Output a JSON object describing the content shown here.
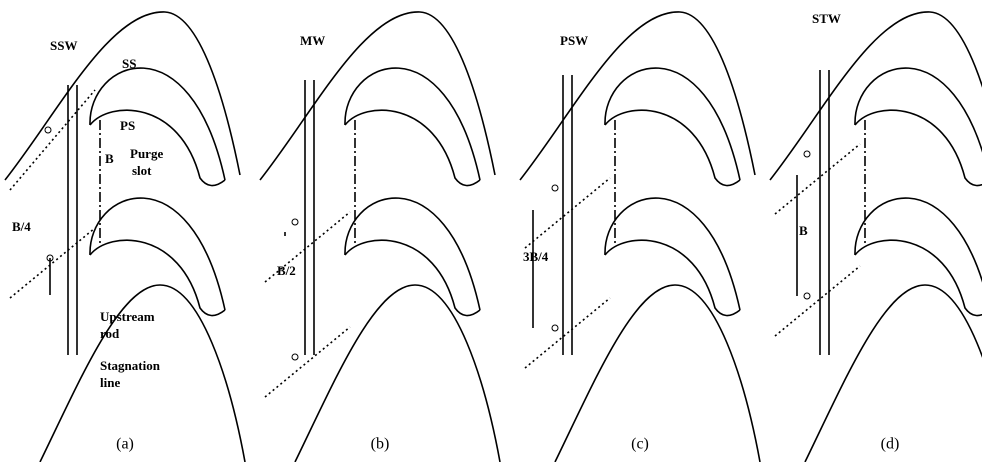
{
  "panels": [
    {
      "label": "SSW",
      "caption": "(a)",
      "annotations": [
        "SS",
        "PS",
        "B",
        "Purge",
        "slot",
        "B/4",
        "Upstream",
        "rod",
        "Stagnation",
        "line"
      ]
    },
    {
      "label": "MW",
      "caption": "(b)",
      "annotations": [
        "B/2"
      ]
    },
    {
      "label": "PSW",
      "caption": "(c)",
      "annotations": [
        "3B/4"
      ]
    },
    {
      "label": "STW",
      "caption": "(d)",
      "annotations": [
        "B"
      ]
    }
  ]
}
